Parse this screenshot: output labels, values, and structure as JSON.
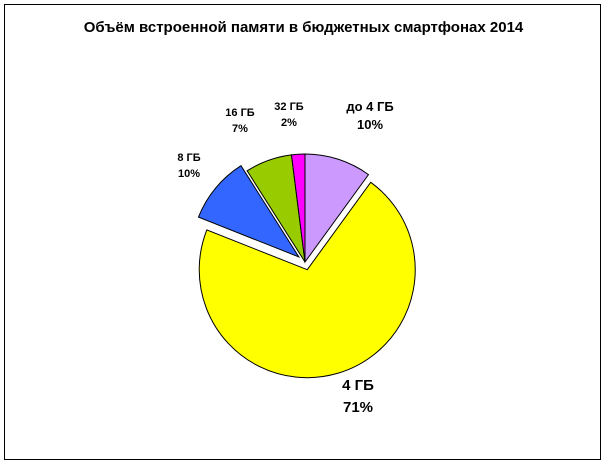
{
  "chart_data": {
    "type": "pie",
    "title": "Объём встроенной памяти в бюджетных смартфонах 2014",
    "slices": [
      {
        "label": "до 4 ГБ",
        "value": 10,
        "value_text": "10%",
        "color": "#cc99ff",
        "exploded": false
      },
      {
        "label": "4 ГБ",
        "value": 71,
        "value_text": "71%",
        "color": "#ffff00",
        "exploded": true
      },
      {
        "label": "8 ГБ",
        "value": 10,
        "value_text": "10%",
        "color": "#3366ff",
        "exploded": true
      },
      {
        "label": "16 ГБ",
        "value": 7,
        "value_text": "7%",
        "color": "#99cc00",
        "exploded": false
      },
      {
        "label": "32 ГБ",
        "value": 2,
        "value_text": "2%",
        "color": "#ff00ff",
        "exploded": false
      }
    ],
    "start_angle": "12 o'clock",
    "direction": "clockwise",
    "legend": "none"
  }
}
